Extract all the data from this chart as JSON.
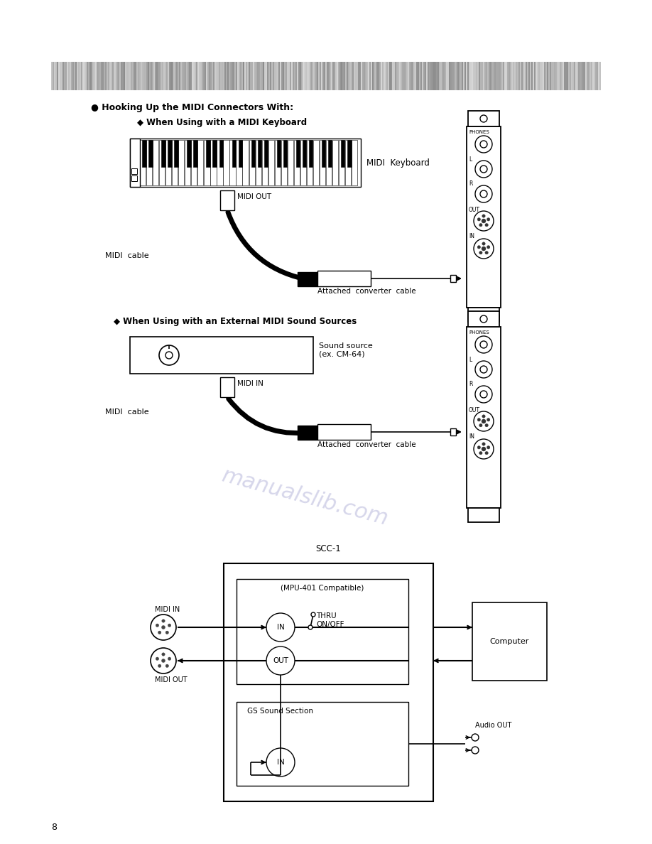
{
  "page_number": "8",
  "bg_color": "#ffffff",
  "watermark_text": "manualslib.com",
  "watermark_color": "#9999cc",
  "section_title": "● Hooking Up the MIDI Connectors With:",
  "subsection1": "◆ When Using with a MIDI Keyboard",
  "subsection2": "◆ When Using with an External MIDI Sound Sources",
  "label_midi_keyboard": "MIDI  Keyboard",
  "label_midi_out": "MIDI OUT",
  "label_midi_cable1": "MIDI  cable",
  "label_attached_cable1": "Attached  converter  cable",
  "label_sound_source": "Sound source\n(ex. CM-64)",
  "label_midi_in": "MIDI IN",
  "label_midi_cable2": "MIDI  cable",
  "label_attached_cable2": "Attached  converter  cable",
  "label_scc1": "SCC-1",
  "label_mpu": "(MPU-401 Compatible)",
  "label_in1": "IN",
  "label_thru": "THRU\nON/OFF",
  "label_out": "OUT",
  "label_computer": "Computer",
  "label_gs": "GS Sound Section",
  "label_in2": "IN",
  "label_midi_in_left": "MIDI IN",
  "label_midi_out_left": "MIDI OUT",
  "label_audio_out": "Audio OUT",
  "label_phones": "PHONES",
  "label_L": "L",
  "label_R": "R",
  "label_OUT": "OUT",
  "label_IN": "IN"
}
